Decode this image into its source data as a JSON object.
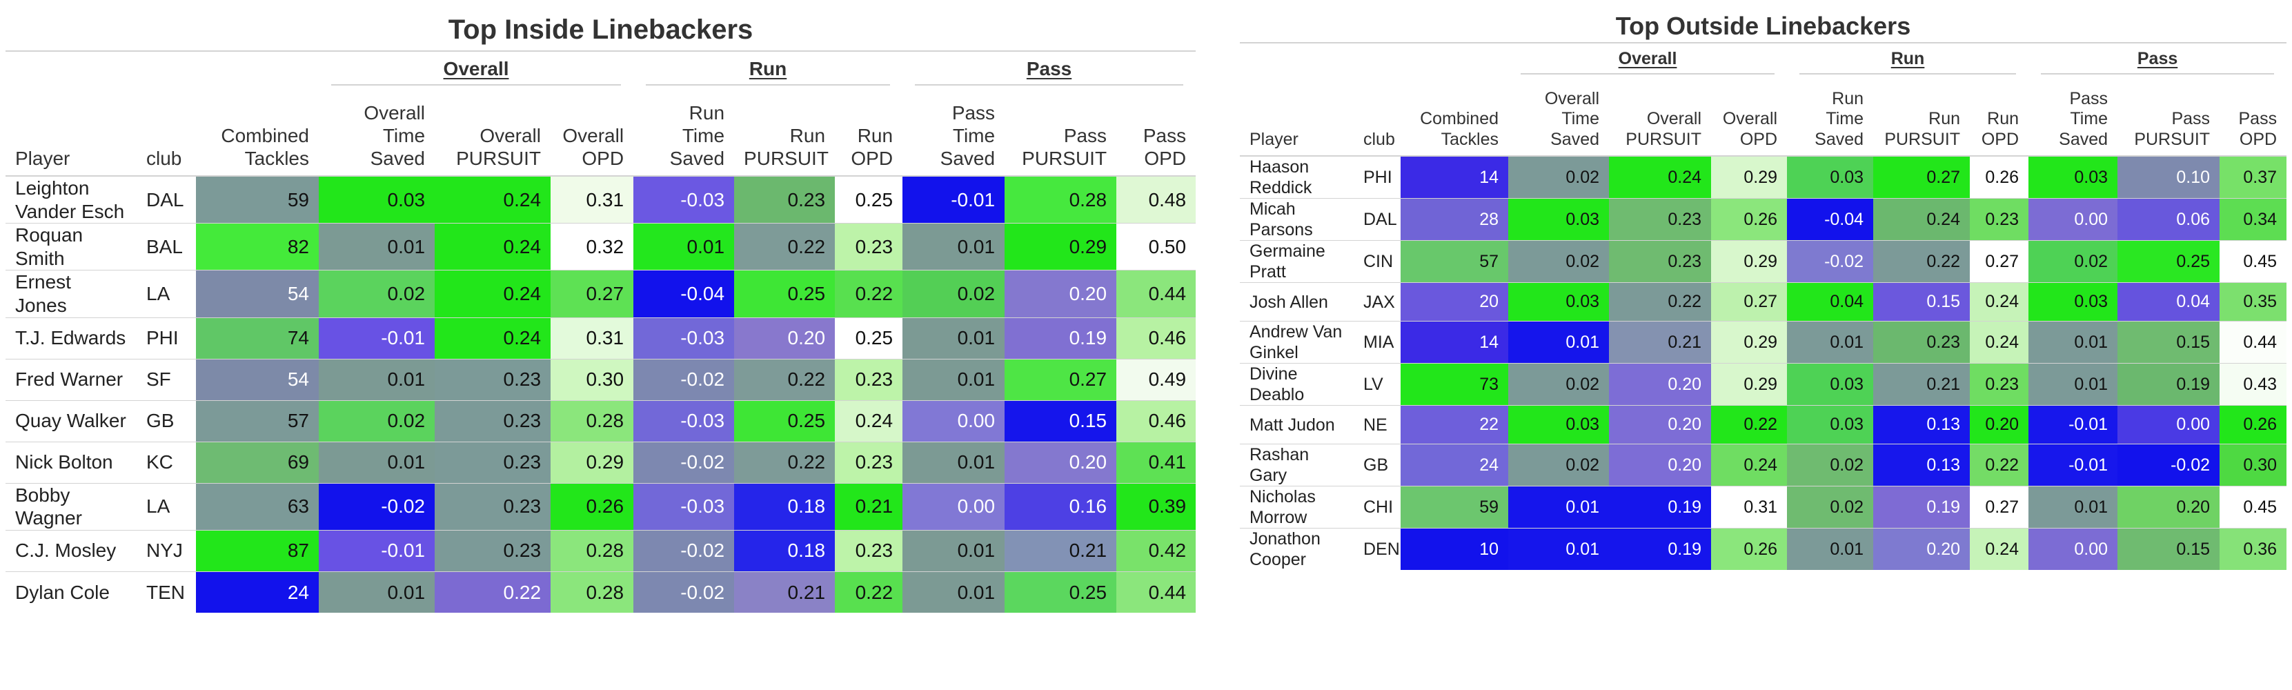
{
  "inside": {
    "title": "Top Inside Linebackers",
    "spanners": {
      "overall": "Overall",
      "run": "Run",
      "pass": "Pass"
    },
    "columns": {
      "player": "Player",
      "club": "club",
      "tackles": "Combined Tackles",
      "overall_time": "Overall Time Saved",
      "overall_pursuit": "Overall PURSUIT",
      "overall_opd": "Overall OPD",
      "run_time": "Run Time Saved",
      "run_pursuit": "Run PURSUIT",
      "run_opd": "Run OPD",
      "pass_time": "Pass Time Saved",
      "pass_pursuit": "Pass PURSUIT",
      "pass_opd": "Pass OPD"
    },
    "rows": [
      {
        "player": "Leighton Vander Esch",
        "club": "DAL",
        "values": [
          "59",
          "0.03",
          "0.24",
          "0.31",
          "-0.03",
          "0.23",
          "0.25",
          "-0.01",
          "0.28",
          "0.48"
        ],
        "colors": [
          "#7c9a98",
          "#22e61a",
          "#22e61a",
          "#f0fbe9",
          "#6b58e2",
          "#6bb86e",
          "#ffffff",
          "#1212ec",
          "#46e83e",
          "#dff8d4"
        ]
      },
      {
        "player": "Roquan Smith",
        "club": "BAL",
        "values": [
          "82",
          "0.01",
          "0.24",
          "0.32",
          "0.01",
          "0.22",
          "0.23",
          "0.01",
          "0.29",
          "0.50"
        ],
        "colors": [
          "#44ea3a",
          "#7c9a94",
          "#22e61a",
          "#ffffff",
          "#23e71d",
          "#7e9b98",
          "#bdf3a9",
          "#7c9a94",
          "#22e61a",
          "#ffffff"
        ]
      },
      {
        "player": "Ernest Jones",
        "club": "LA",
        "values": [
          "54",
          "0.02",
          "0.24",
          "0.27",
          "-0.04",
          "0.25",
          "0.22",
          "0.02",
          "0.20",
          "0.44"
        ],
        "colors": [
          "#7d8aa8",
          "#5bd35d",
          "#22e61a",
          "#5ee154",
          "#1212ec",
          "#3ee635",
          "#58e04f",
          "#53cf55",
          "#8478cf",
          "#8be67c"
        ]
      },
      {
        "player": "T.J. Edwards",
        "club": "PHI",
        "values": [
          "74",
          "-0.01",
          "0.24",
          "0.31",
          "-0.03",
          "0.20",
          "0.25",
          "0.01",
          "0.19",
          "0.46"
        ],
        "colors": [
          "#60c766",
          "#6852e4",
          "#22e61a",
          "#e3fadb",
          "#7268d8",
          "#8878cd",
          "#ffffff",
          "#7c9a94",
          "#8070d2",
          "#b7f2a3"
        ]
      },
      {
        "player": "Fred Warner",
        "club": "SF",
        "values": [
          "54",
          "0.01",
          "0.23",
          "0.30",
          "-0.02",
          "0.22",
          "0.23",
          "0.01",
          "0.27",
          "0.49"
        ],
        "colors": [
          "#7d8aa8",
          "#7c9a94",
          "#7c9a98",
          "#cff7c0",
          "#7d88b0",
          "#7e9b98",
          "#bdf3a9",
          "#7c9a94",
          "#4ee545",
          "#f2fbee"
        ]
      },
      {
        "player": "Quay Walker",
        "club": "GB",
        "values": [
          "57",
          "0.02",
          "0.23",
          "0.28",
          "-0.03",
          "0.25",
          "0.24",
          "0.00",
          "0.15",
          "0.46"
        ],
        "colors": [
          "#7c9a98",
          "#5bd35d",
          "#7c9a98",
          "#8be67c",
          "#7268d8",
          "#3ee635",
          "#d6f7c9",
          "#8178d5",
          "#1515ec",
          "#b7f2a3"
        ]
      },
      {
        "player": "Nick Bolton",
        "club": "KC",
        "values": [
          "69",
          "0.01",
          "0.23",
          "0.29",
          "-0.02",
          "0.22",
          "0.23",
          "0.01",
          "0.20",
          "0.41"
        ],
        "colors": [
          "#6ebb72",
          "#7c9a94",
          "#7c9a98",
          "#b3f0a0",
          "#7d88b0",
          "#7e9b98",
          "#bdf3a9",
          "#7c9a94",
          "#8478cf",
          "#5ee154"
        ]
      },
      {
        "player": "Bobby Wagner",
        "club": "LA",
        "values": [
          "63",
          "-0.02",
          "0.23",
          "0.26",
          "-0.03",
          "0.18",
          "0.21",
          "0.00",
          "0.16",
          "0.39"
        ],
        "colors": [
          "#7c9a98",
          "#1212ec",
          "#7c9a98",
          "#22e61a",
          "#7268d8",
          "#2525ea",
          "#22e61a",
          "#8178d5",
          "#4d40e4",
          "#22e61a"
        ]
      },
      {
        "player": "C.J. Mosley",
        "club": "NYJ",
        "values": [
          "87",
          "-0.01",
          "0.23",
          "0.28",
          "-0.02",
          "0.18",
          "0.23",
          "0.01",
          "0.21",
          "0.42"
        ],
        "colors": [
          "#22e61a",
          "#6852e4",
          "#7c9a98",
          "#8be67c",
          "#7d88b0",
          "#2525ea",
          "#bdf3a9",
          "#7c9a94",
          "#8292b5",
          "#79e26a"
        ]
      },
      {
        "player": "Dylan Cole",
        "club": "TEN",
        "values": [
          "24",
          "0.01",
          "0.22",
          "0.28",
          "-0.02",
          "0.21",
          "0.22",
          "0.01",
          "0.25",
          "0.44"
        ],
        "colors": [
          "#1212ec",
          "#7c9a94",
          "#7c6ad2",
          "#8be67c",
          "#7d88b0",
          "#8a82c6",
          "#58e04f",
          "#7c9a94",
          "#5bd75e",
          "#8be67c"
        ]
      }
    ]
  },
  "outside": {
    "title": "Top Outside Linebackers",
    "spanners": {
      "overall": "Overall",
      "run": "Run",
      "pass": "Pass"
    },
    "columns": {
      "player": "Player",
      "club": "club",
      "tackles": "Combined Tackles",
      "overall_time": "Overall Time Saved",
      "overall_pursuit": "Overall PURSUIT",
      "overall_opd": "Overall OPD",
      "run_time": "Run Time Saved",
      "run_pursuit": "Run PURSUIT",
      "run_opd": "Run OPD",
      "pass_time": "Pass Time Saved",
      "pass_pursuit": "Pass PURSUIT",
      "pass_opd": "Pass OPD"
    },
    "rows": [
      {
        "player": "Haason Reddick",
        "club": "PHI",
        "values": [
          "14",
          "0.02",
          "0.24",
          "0.29",
          "0.03",
          "0.27",
          "0.26",
          "0.03",
          "0.10",
          "0.37"
        ],
        "colors": [
          "#3b2ae6",
          "#7c9a98",
          "#22e61a",
          "#d8f7cc",
          "#4ed255",
          "#22e61a",
          "#ffffff",
          "#22e61a",
          "#7e8aae",
          "#77e168"
        ]
      },
      {
        "player": "Micah Parsons",
        "club": "DAL",
        "values": [
          "28",
          "0.03",
          "0.23",
          "0.26",
          "-0.04",
          "0.24",
          "0.23",
          "0.00",
          "0.06",
          "0.34"
        ],
        "colors": [
          "#7064d6",
          "#22e61a",
          "#6fbb70",
          "#8be67c",
          "#1212ec",
          "#6bb86e",
          "#6fdd62",
          "#7c6cd4",
          "#6858dc",
          "#5ddd52"
        ]
      },
      {
        "player": "Germaine Pratt",
        "club": "CIN",
        "values": [
          "57",
          "0.02",
          "0.23",
          "0.29",
          "-0.02",
          "0.22",
          "0.27",
          "0.02",
          "0.25",
          "0.45"
        ],
        "colors": [
          "#68c86b",
          "#7c9a98",
          "#6fbb70",
          "#d8f7cc",
          "#7e7ad0",
          "#7c9a98",
          "#ffffff",
          "#4ed255",
          "#2ae722",
          "#ffffff"
        ]
      },
      {
        "player": "Josh Allen",
        "club": "JAX",
        "values": [
          "20",
          "0.03",
          "0.22",
          "0.27",
          "0.04",
          "0.15",
          "0.24",
          "0.03",
          "0.04",
          "0.35"
        ],
        "colors": [
          "#6a58dd",
          "#22e61a",
          "#7c9a98",
          "#bdf1ad",
          "#22e61a",
          "#6b58dd",
          "#c6f3b8",
          "#22e61a",
          "#6553de",
          "#7ce06e"
        ]
      },
      {
        "player": "Andrew Van Ginkel",
        "club": "MIA",
        "values": [
          "14",
          "0.01",
          "0.21",
          "0.29",
          "0.01",
          "0.23",
          "0.24",
          "0.01",
          "0.15",
          "0.44"
        ],
        "colors": [
          "#3b2ae6",
          "#1515ec",
          "#8492b0",
          "#d8f7cc",
          "#7c9a98",
          "#6bb86e",
          "#c6f3b8",
          "#7c9a98",
          "#6fbb70",
          "#fbfefa"
        ]
      },
      {
        "player": "Divine Deablo",
        "club": "LV",
        "values": [
          "73",
          "0.02",
          "0.20",
          "0.29",
          "0.03",
          "0.21",
          "0.23",
          "0.01",
          "0.19",
          "0.43"
        ],
        "colors": [
          "#22e61a",
          "#7c9a98",
          "#7d6dd6",
          "#d8f7cc",
          "#4ed255",
          "#7c9a98",
          "#6fdd62",
          "#7c9a98",
          "#6bb86e",
          "#f5fdf3"
        ]
      },
      {
        "player": "Matt Judon",
        "club": "NE",
        "values": [
          "22",
          "0.03",
          "0.20",
          "0.22",
          "0.03",
          "0.13",
          "0.20",
          "-0.01",
          "0.00",
          "0.26"
        ],
        "colors": [
          "#6e5fdb",
          "#22e61a",
          "#7d6dd6",
          "#22e61a",
          "#4ed255",
          "#1717ec",
          "#22e61a",
          "#1717ec",
          "#4a3ae4",
          "#22e61a"
        ]
      },
      {
        "player": "Rashan Gary",
        "club": "GB",
        "values": [
          "24",
          "0.02",
          "0.20",
          "0.24",
          "0.02",
          "0.13",
          "0.22",
          "-0.01",
          "-0.02",
          "0.30"
        ],
        "colors": [
          "#7268d8",
          "#7c9a98",
          "#7d6dd6",
          "#6fdd62",
          "#6fbb70",
          "#1717ec",
          "#74dc66",
          "#1717ec",
          "#1212ec",
          "#4ed942"
        ]
      },
      {
        "player": "Nicholas Morrow",
        "club": "CHI",
        "values": [
          "59",
          "0.01",
          "0.19",
          "0.31",
          "0.02",
          "0.19",
          "0.27",
          "0.01",
          "0.20",
          "0.45"
        ],
        "colors": [
          "#6cc66e",
          "#1515ec",
          "#1515ec",
          "#ffffff",
          "#6fbb70",
          "#7e6bd4",
          "#ffffff",
          "#7c9a98",
          "#6fd264",
          "#ffffff"
        ]
      },
      {
        "player": "Jonathon Cooper",
        "club": "DEN",
        "values": [
          "10",
          "0.01",
          "0.19",
          "0.26",
          "0.01",
          "0.20",
          "0.24",
          "0.00",
          "0.15",
          "0.36"
        ],
        "colors": [
          "#1212ec",
          "#1515ec",
          "#1515ec",
          "#8be67c",
          "#7c9a98",
          "#7e7ad0",
          "#c6f3b8",
          "#7c6cd4",
          "#6fbb70",
          "#86e278"
        ]
      }
    ]
  }
}
